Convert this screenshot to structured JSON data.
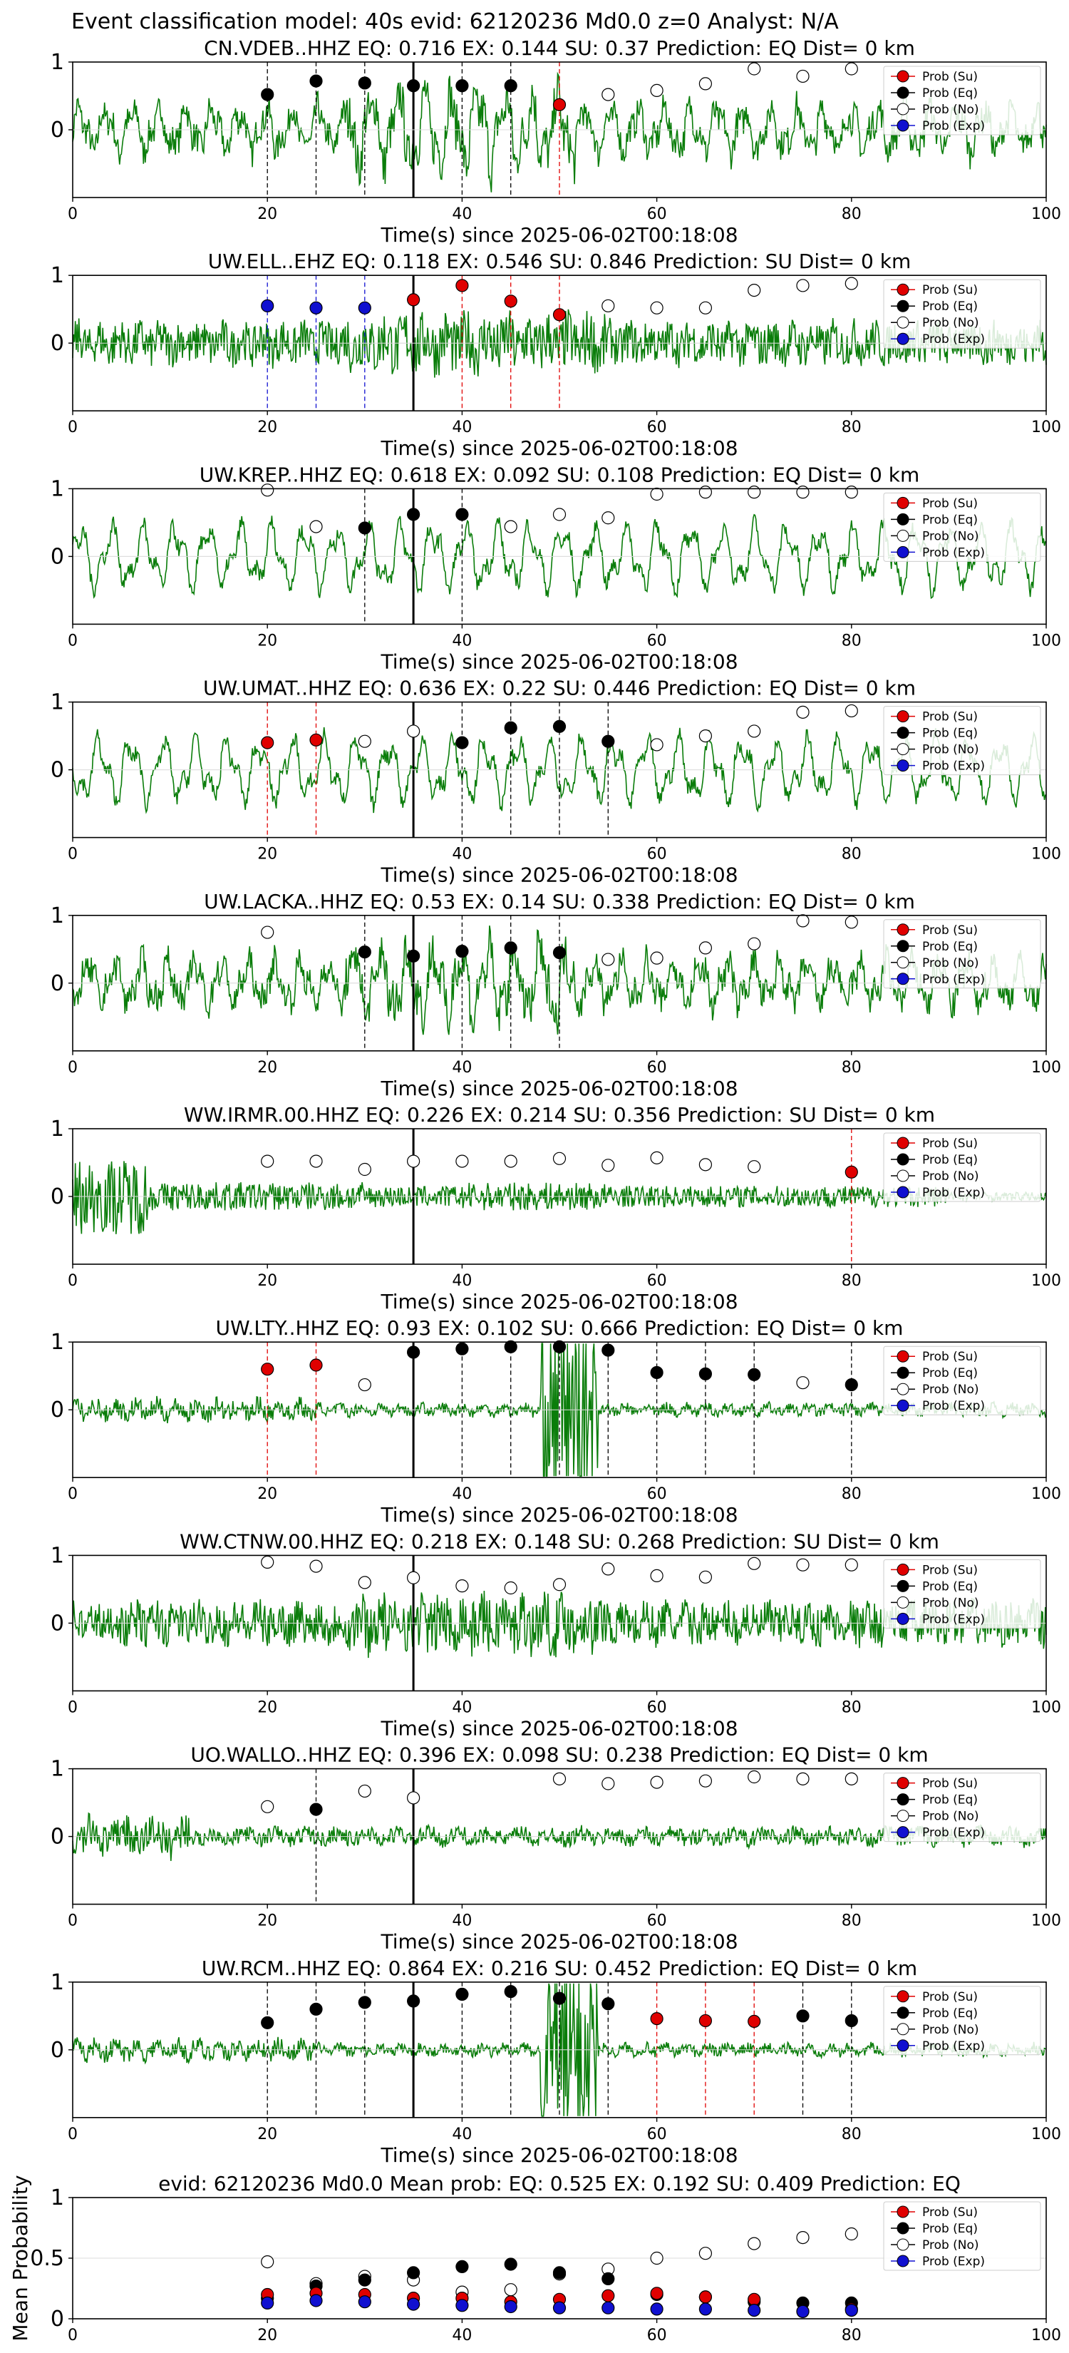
{
  "figure": {
    "title": "Event classification model: 40s evid: 62120236 Md0.0 z=0 Analyst: N/A",
    "legend_entries": [
      "Prob (Su)",
      "Prob (Eq)",
      "Prob (No)",
      "Prob (Exp)"
    ],
    "colors": {
      "su": "#e00000",
      "eq": "#000000",
      "no": "#ffffff",
      "exp": "#1010d0",
      "trace": "#0a7d0a",
      "arrival": "#000000"
    }
  },
  "chart_data": [
    {
      "type": "line",
      "title": "CN.VDEB..HHZ   EQ: 0.716   EX: 0.144   SU: 0.37    Prediction: EQ    Dist= 0 km",
      "xlabel": "Time(s) since 2025-06-02T00:18:08",
      "xlim": [
        0,
        100
      ],
      "ylim": [
        -1,
        1
      ],
      "yticks": [
        0,
        1
      ],
      "xticks": [
        0,
        20,
        40,
        60,
        80,
        100
      ],
      "arrival": 35,
      "trace_style": "mixed",
      "points": [
        {
          "x": 20,
          "y": 0.52,
          "cls": "eq"
        },
        {
          "x": 25,
          "y": 0.72,
          "cls": "eq"
        },
        {
          "x": 30,
          "y": 0.69,
          "cls": "eq"
        },
        {
          "x": 35,
          "y": 0.65,
          "cls": "eq"
        },
        {
          "x": 40,
          "y": 0.65,
          "cls": "eq"
        },
        {
          "x": 45,
          "y": 0.65,
          "cls": "eq"
        },
        {
          "x": 50,
          "y": 0.37,
          "cls": "su"
        },
        {
          "x": 55,
          "y": 0.52,
          "cls": "no"
        },
        {
          "x": 60,
          "y": 0.58,
          "cls": "no"
        },
        {
          "x": 65,
          "y": 0.68,
          "cls": "no"
        },
        {
          "x": 70,
          "y": 0.9,
          "cls": "no"
        },
        {
          "x": 75,
          "y": 0.79,
          "cls": "no"
        },
        {
          "x": 80,
          "y": 0.9,
          "cls": "no"
        }
      ]
    },
    {
      "type": "line",
      "title": "UW.ELL..EHZ   EQ: 0.118   EX: 0.546   SU: 0.846   Prediction: SU    Dist= 0 km",
      "xlabel": "Time(s) since 2025-06-02T00:18:08",
      "xlim": [
        0,
        100
      ],
      "ylim": [
        -1,
        1
      ],
      "yticks": [
        0,
        1
      ],
      "xticks": [
        0,
        20,
        40,
        60,
        80,
        100
      ],
      "arrival": 35,
      "trace_style": "noise",
      "points": [
        {
          "x": 20,
          "y": 0.55,
          "cls": "exp"
        },
        {
          "x": 25,
          "y": 0.52,
          "cls": "exp"
        },
        {
          "x": 30,
          "y": 0.52,
          "cls": "exp"
        },
        {
          "x": 35,
          "y": 0.64,
          "cls": "su"
        },
        {
          "x": 40,
          "y": 0.85,
          "cls": "su"
        },
        {
          "x": 45,
          "y": 0.62,
          "cls": "su"
        },
        {
          "x": 50,
          "y": 0.42,
          "cls": "su"
        },
        {
          "x": 55,
          "y": 0.55,
          "cls": "no"
        },
        {
          "x": 60,
          "y": 0.52,
          "cls": "no"
        },
        {
          "x": 65,
          "y": 0.52,
          "cls": "no"
        },
        {
          "x": 70,
          "y": 0.78,
          "cls": "no"
        },
        {
          "x": 75,
          "y": 0.85,
          "cls": "no"
        },
        {
          "x": 80,
          "y": 0.88,
          "cls": "no"
        }
      ]
    },
    {
      "type": "line",
      "title": "UW.KREP..HHZ   EQ: 0.618   EX: 0.092   SU: 0.108   Prediction: EQ    Dist= 0 km",
      "xlabel": "Time(s) since 2025-06-02T00:18:08",
      "xlim": [
        0,
        100
      ],
      "ylim": [
        -1,
        1
      ],
      "yticks": [
        0,
        1
      ],
      "xticks": [
        0,
        20,
        40,
        60,
        80,
        100
      ],
      "arrival": 35,
      "trace_style": "smooth",
      "points": [
        {
          "x": 20,
          "y": 0.98,
          "cls": "no"
        },
        {
          "x": 25,
          "y": 0.44,
          "cls": "no"
        },
        {
          "x": 30,
          "y": 0.42,
          "cls": "eq"
        },
        {
          "x": 35,
          "y": 0.62,
          "cls": "eq"
        },
        {
          "x": 40,
          "y": 0.62,
          "cls": "eq"
        },
        {
          "x": 45,
          "y": 0.44,
          "cls": "no"
        },
        {
          "x": 50,
          "y": 0.62,
          "cls": "no"
        },
        {
          "x": 55,
          "y": 0.57,
          "cls": "no"
        },
        {
          "x": 60,
          "y": 0.92,
          "cls": "no"
        },
        {
          "x": 65,
          "y": 0.95,
          "cls": "no"
        },
        {
          "x": 70,
          "y": 0.95,
          "cls": "no"
        },
        {
          "x": 75,
          "y": 0.95,
          "cls": "no"
        },
        {
          "x": 80,
          "y": 0.95,
          "cls": "no"
        }
      ]
    },
    {
      "type": "line",
      "title": "UW.UMAT..HHZ   EQ: 0.636   EX: 0.22   SU: 0.446   Prediction: EQ    Dist= 0 km",
      "xlabel": "Time(s) since 2025-06-02T00:18:08",
      "xlim": [
        0,
        100
      ],
      "ylim": [
        -1,
        1
      ],
      "yticks": [
        0,
        1
      ],
      "xticks": [
        0,
        20,
        40,
        60,
        80,
        100
      ],
      "arrival": 35,
      "trace_style": "smooth",
      "points": [
        {
          "x": 20,
          "y": 0.4,
          "cls": "su"
        },
        {
          "x": 25,
          "y": 0.44,
          "cls": "su"
        },
        {
          "x": 30,
          "y": 0.42,
          "cls": "no"
        },
        {
          "x": 35,
          "y": 0.57,
          "cls": "no"
        },
        {
          "x": 40,
          "y": 0.4,
          "cls": "eq"
        },
        {
          "x": 45,
          "y": 0.62,
          "cls": "eq"
        },
        {
          "x": 50,
          "y": 0.64,
          "cls": "eq"
        },
        {
          "x": 55,
          "y": 0.42,
          "cls": "eq"
        },
        {
          "x": 60,
          "y": 0.37,
          "cls": "no"
        },
        {
          "x": 65,
          "y": 0.5,
          "cls": "no"
        },
        {
          "x": 70,
          "y": 0.57,
          "cls": "no"
        },
        {
          "x": 75,
          "y": 0.85,
          "cls": "no"
        },
        {
          "x": 80,
          "y": 0.87,
          "cls": "no"
        }
      ]
    },
    {
      "type": "line",
      "title": "UW.LACKA..HHZ   EQ: 0.53   EX: 0.14   SU: 0.338   Prediction: EQ    Dist= 0 km",
      "xlabel": "Time(s) since 2025-06-02T00:18:08",
      "xlim": [
        0,
        100
      ],
      "ylim": [
        -1,
        1
      ],
      "yticks": [
        0,
        1
      ],
      "xticks": [
        0,
        20,
        40,
        60,
        80,
        100
      ],
      "arrival": 35,
      "trace_style": "mixed",
      "points": [
        {
          "x": 20,
          "y": 0.75,
          "cls": "no"
        },
        {
          "x": 30,
          "y": 0.46,
          "cls": "eq"
        },
        {
          "x": 35,
          "y": 0.4,
          "cls": "eq"
        },
        {
          "x": 40,
          "y": 0.47,
          "cls": "eq"
        },
        {
          "x": 45,
          "y": 0.52,
          "cls": "eq"
        },
        {
          "x": 50,
          "y": 0.45,
          "cls": "eq"
        },
        {
          "x": 55,
          "y": 0.35,
          "cls": "no"
        },
        {
          "x": 60,
          "y": 0.37,
          "cls": "no"
        },
        {
          "x": 65,
          "y": 0.52,
          "cls": "no"
        },
        {
          "x": 70,
          "y": 0.58,
          "cls": "no"
        },
        {
          "x": 75,
          "y": 0.92,
          "cls": "no"
        },
        {
          "x": 80,
          "y": 0.9,
          "cls": "no"
        }
      ]
    },
    {
      "type": "line",
      "title": "WW.IRMR.00.HHZ   EQ: 0.226   EX: 0.214   SU: 0.356   Prediction: SU    Dist= 0 km",
      "xlabel": "Time(s) since 2025-06-02T00:18:08",
      "xlim": [
        0,
        100
      ],
      "ylim": [
        -1,
        1
      ],
      "yticks": [
        0,
        1
      ],
      "xticks": [
        0,
        20,
        40,
        60,
        80,
        100
      ],
      "arrival": 35,
      "trace_style": "burst",
      "points": [
        {
          "x": 20,
          "y": 0.52,
          "cls": "no"
        },
        {
          "x": 25,
          "y": 0.52,
          "cls": "no"
        },
        {
          "x": 30,
          "y": 0.4,
          "cls": "no"
        },
        {
          "x": 35,
          "y": 0.52,
          "cls": "no"
        },
        {
          "x": 40,
          "y": 0.52,
          "cls": "no"
        },
        {
          "x": 45,
          "y": 0.52,
          "cls": "no"
        },
        {
          "x": 50,
          "y": 0.56,
          "cls": "no"
        },
        {
          "x": 55,
          "y": 0.46,
          "cls": "no"
        },
        {
          "x": 60,
          "y": 0.57,
          "cls": "no"
        },
        {
          "x": 65,
          "y": 0.47,
          "cls": "no"
        },
        {
          "x": 70,
          "y": 0.44,
          "cls": "no"
        },
        {
          "x": 80,
          "y": 0.36,
          "cls": "su"
        }
      ]
    },
    {
      "type": "line",
      "title": "UW.LTY..HHZ   EQ: 0.93   EX: 0.102   SU: 0.666   Prediction: EQ    Dist= 0 km",
      "xlabel": "Time(s) since 2025-06-02T00:18:08",
      "xlim": [
        0,
        100
      ],
      "ylim": [
        -1,
        1
      ],
      "yticks": [
        0,
        1
      ],
      "xticks": [
        0,
        20,
        40,
        60,
        80,
        100
      ],
      "arrival": 35,
      "trace_style": "quiet-event",
      "points": [
        {
          "x": 20,
          "y": 0.6,
          "cls": "su"
        },
        {
          "x": 25,
          "y": 0.66,
          "cls": "su"
        },
        {
          "x": 30,
          "y": 0.37,
          "cls": "no"
        },
        {
          "x": 35,
          "y": 0.85,
          "cls": "eq"
        },
        {
          "x": 40,
          "y": 0.9,
          "cls": "eq"
        },
        {
          "x": 45,
          "y": 0.93,
          "cls": "eq"
        },
        {
          "x": 50,
          "y": 0.93,
          "cls": "eq"
        },
        {
          "x": 55,
          "y": 0.88,
          "cls": "eq"
        },
        {
          "x": 60,
          "y": 0.55,
          "cls": "eq"
        },
        {
          "x": 65,
          "y": 0.53,
          "cls": "eq"
        },
        {
          "x": 70,
          "y": 0.52,
          "cls": "eq"
        },
        {
          "x": 75,
          "y": 0.4,
          "cls": "no"
        },
        {
          "x": 80,
          "y": 0.37,
          "cls": "eq"
        }
      ]
    },
    {
      "type": "line",
      "title": "WW.CTNW.00.HHZ   EQ: 0.218   EX: 0.148   SU: 0.268   Prediction: SU    Dist= 0 km",
      "xlabel": "Time(s) since 2025-06-02T00:18:08",
      "xlim": [
        0,
        100
      ],
      "ylim": [
        -1,
        1
      ],
      "yticks": [
        0,
        1
      ],
      "xticks": [
        0,
        20,
        40,
        60,
        80,
        100
      ],
      "arrival": 35,
      "trace_style": "noise",
      "points": [
        {
          "x": 20,
          "y": 0.9,
          "cls": "no"
        },
        {
          "x": 25,
          "y": 0.84,
          "cls": "no"
        },
        {
          "x": 30,
          "y": 0.6,
          "cls": "no"
        },
        {
          "x": 35,
          "y": 0.67,
          "cls": "no"
        },
        {
          "x": 40,
          "y": 0.55,
          "cls": "no"
        },
        {
          "x": 45,
          "y": 0.52,
          "cls": "no"
        },
        {
          "x": 50,
          "y": 0.57,
          "cls": "no"
        },
        {
          "x": 55,
          "y": 0.8,
          "cls": "no"
        },
        {
          "x": 60,
          "y": 0.7,
          "cls": "no"
        },
        {
          "x": 65,
          "y": 0.68,
          "cls": "no"
        },
        {
          "x": 70,
          "y": 0.88,
          "cls": "no"
        },
        {
          "x": 75,
          "y": 0.86,
          "cls": "no"
        },
        {
          "x": 80,
          "y": 0.86,
          "cls": "no"
        }
      ]
    },
    {
      "type": "line",
      "title": "UO.WALLO..HHZ   EQ: 0.396   EX: 0.098   SU: 0.238   Prediction: EQ    Dist= 0 km",
      "xlabel": "Time(s) since 2025-06-02T00:18:08",
      "xlim": [
        0,
        100
      ],
      "ylim": [
        -1,
        1
      ],
      "yticks": [
        0,
        1
      ],
      "xticks": [
        0,
        20,
        40,
        60,
        80,
        100
      ],
      "arrival": 35,
      "trace_style": "quiet",
      "points": [
        {
          "x": 20,
          "y": 0.44,
          "cls": "no"
        },
        {
          "x": 25,
          "y": 0.4,
          "cls": "eq"
        },
        {
          "x": 30,
          "y": 0.67,
          "cls": "no"
        },
        {
          "x": 35,
          "y": 0.57,
          "cls": "no"
        },
        {
          "x": 50,
          "y": 0.85,
          "cls": "no"
        },
        {
          "x": 55,
          "y": 0.78,
          "cls": "no"
        },
        {
          "x": 60,
          "y": 0.8,
          "cls": "no"
        },
        {
          "x": 65,
          "y": 0.82,
          "cls": "no"
        },
        {
          "x": 70,
          "y": 0.88,
          "cls": "no"
        },
        {
          "x": 75,
          "y": 0.85,
          "cls": "no"
        },
        {
          "x": 80,
          "y": 0.85,
          "cls": "no"
        }
      ]
    },
    {
      "type": "line",
      "title": "UW.RCM..HHZ   EQ: 0.864   EX: 0.216   SU: 0.452   Prediction: EQ    Dist= 0 km",
      "xlabel": "Time(s) since 2025-06-02T00:18:08",
      "xlim": [
        0,
        100
      ],
      "ylim": [
        -1,
        1
      ],
      "yticks": [
        0,
        1
      ],
      "xticks": [
        0,
        20,
        40,
        60,
        80,
        100
      ],
      "arrival": 35,
      "trace_style": "quiet-event",
      "points": [
        {
          "x": 20,
          "y": 0.4,
          "cls": "eq"
        },
        {
          "x": 25,
          "y": 0.6,
          "cls": "eq"
        },
        {
          "x": 30,
          "y": 0.7,
          "cls": "eq"
        },
        {
          "x": 35,
          "y": 0.72,
          "cls": "eq"
        },
        {
          "x": 40,
          "y": 0.82,
          "cls": "eq"
        },
        {
          "x": 45,
          "y": 0.86,
          "cls": "eq"
        },
        {
          "x": 50,
          "y": 0.76,
          "cls": "eq"
        },
        {
          "x": 55,
          "y": 0.68,
          "cls": "eq"
        },
        {
          "x": 60,
          "y": 0.46,
          "cls": "su"
        },
        {
          "x": 65,
          "y": 0.43,
          "cls": "su"
        },
        {
          "x": 70,
          "y": 0.42,
          "cls": "su"
        },
        {
          "x": 75,
          "y": 0.5,
          "cls": "eq"
        },
        {
          "x": 80,
          "y": 0.43,
          "cls": "eq"
        }
      ]
    },
    {
      "type": "scatter",
      "title": "evid: 62120236   Md0.0   Mean prob:   EQ: 0.525   EX: 0.192   SU: 0.409   Prediction: EQ",
      "xlabel": "",
      "ylabel": "Mean Probability",
      "xlim": [
        0,
        100
      ],
      "ylim": [
        0,
        1
      ],
      "yticks": [
        0,
        0.5,
        1
      ],
      "xticks": [
        0,
        20,
        40,
        60,
        80,
        100
      ],
      "x": [
        20,
        25,
        30,
        35,
        40,
        45,
        50,
        55,
        60,
        65,
        70,
        75,
        80
      ],
      "series": [
        {
          "cls": "no",
          "values": [
            0.47,
            0.29,
            0.35,
            0.32,
            0.22,
            0.24,
            0.37,
            0.41,
            0.5,
            0.54,
            0.62,
            0.67,
            0.7
          ]
        },
        {
          "cls": "eq",
          "values": [
            0.17,
            0.27,
            0.32,
            0.38,
            0.43,
            0.45,
            0.38,
            0.33,
            0.2,
            0.18,
            0.14,
            0.13,
            0.13
          ]
        },
        {
          "cls": "su",
          "values": [
            0.2,
            0.21,
            0.2,
            0.17,
            0.17,
            0.14,
            0.16,
            0.19,
            0.21,
            0.18,
            0.16,
            0.06,
            0.08
          ]
        },
        {
          "cls": "exp",
          "values": [
            0.13,
            0.15,
            0.14,
            0.12,
            0.11,
            0.1,
            0.09,
            0.09,
            0.08,
            0.08,
            0.07,
            0.06,
            0.07
          ]
        }
      ]
    }
  ]
}
